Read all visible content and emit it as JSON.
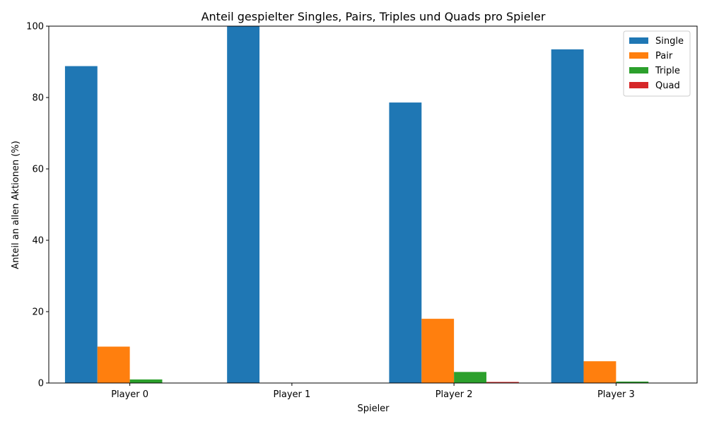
{
  "chart_data": {
    "type": "bar",
    "title": "Anteil gespielter Singles, Pairs, Triples und Quads pro Spieler",
    "xlabel": "Spieler",
    "ylabel": "Anteil an allen Aktionen (%)",
    "ylim": [
      0,
      100
    ],
    "yticks": [
      "0",
      "20",
      "40",
      "60",
      "80",
      "100"
    ],
    "categories": [
      "Player 0",
      "Player 1",
      "Player 2",
      "Player 3"
    ],
    "legend_position": "top-right",
    "grid": false,
    "series": [
      {
        "name": "Single",
        "color": "#1f77b4",
        "values": [
          88.8,
          100.0,
          78.6,
          93.5
        ]
      },
      {
        "name": "Pair",
        "color": "#ff7f0e",
        "values": [
          10.2,
          0.0,
          18.0,
          6.1
        ]
      },
      {
        "name": "Triple",
        "color": "#2ca02c",
        "values": [
          1.0,
          0.0,
          3.1,
          0.4
        ]
      },
      {
        "name": "Quad",
        "color": "#d62728",
        "values": [
          0.0,
          0.0,
          0.3,
          0.0
        ]
      }
    ]
  }
}
